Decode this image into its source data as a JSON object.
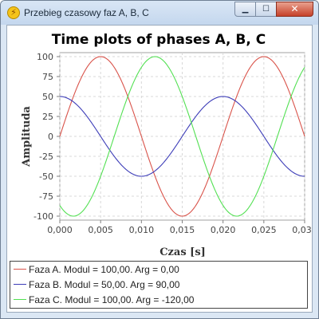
{
  "window": {
    "title": "Przebieg czasowy faz A, B, C",
    "icon": "lightning-icon",
    "controls": {
      "minimize": "minimize-icon",
      "maximize": "maximize-icon",
      "close": "close-icon"
    }
  },
  "colors": {
    "phase_a": "#d9534a",
    "phase_b": "#3d3db8",
    "phase_c": "#52e052"
  },
  "chart_data": {
    "type": "line",
    "title": "Time plots of phases A, B, C",
    "xlabel": "Czas [s]",
    "ylabel": "Amplituda",
    "xlim": [
      0,
      0.03
    ],
    "ylim": [
      -105,
      105
    ],
    "x_ticks": [
      0,
      0.005,
      0.01,
      0.015,
      0.02,
      0.025,
      0.03
    ],
    "x_tick_labels": [
      "0,000",
      "0,005",
      "0,010",
      "0,015",
      "0,020",
      "0,025",
      "0,030"
    ],
    "y_ticks": [
      100,
      75,
      50,
      25,
      0,
      -25,
      -50,
      -75,
      -100
    ],
    "y_tick_labels": [
      "100",
      "75",
      "50",
      "25",
      "0",
      "-25",
      "-50",
      "-75",
      "-100"
    ],
    "grid": true,
    "frequency_hz": 50,
    "series": [
      {
        "name": "Faza A. Modul = 100,00. Arg = 0,00",
        "amplitude": 100,
        "phase_deg": 0,
        "color": "#d9534a"
      },
      {
        "name": "Faza B. Modul = 50,00. Arg = 90,00",
        "amplitude": 50,
        "phase_deg": 90,
        "color": "#3d3db8"
      },
      {
        "name": "Faza C. Modul = 100,00. Arg = -120,00",
        "amplitude": 100,
        "phase_deg": -120,
        "color": "#52e052"
      }
    ]
  }
}
